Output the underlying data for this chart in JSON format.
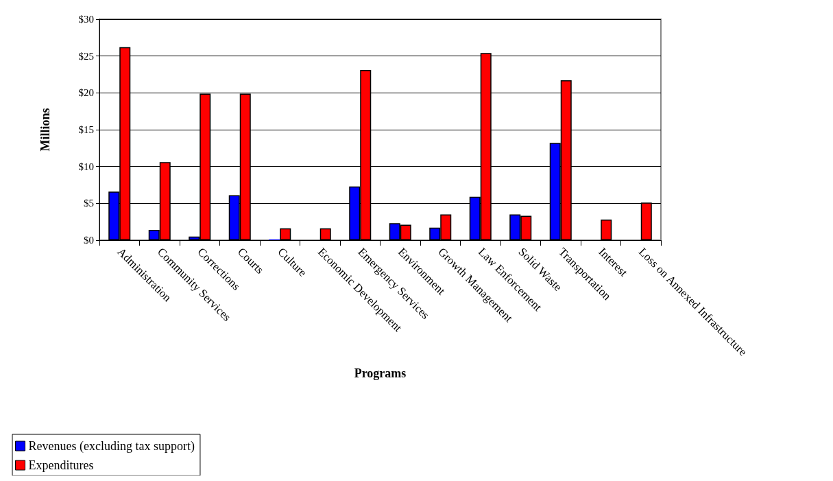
{
  "chart_data": {
    "type": "bar",
    "xlabel": "Programs",
    "ylabel": "Millions",
    "categories": [
      "Administration",
      "Community Services",
      "Corrections",
      "Courts",
      "Culture",
      "Economic Development",
      "Emergency Services",
      "Environment",
      "Growth Management",
      "Law Enforcement",
      "Solid Waste",
      "Transportation",
      "Interest",
      "Loss on Annexed Infrastructure"
    ],
    "series": [
      {
        "name": "Revenues (excluding tax support)",
        "color": "#0000ff",
        "values": [
          6.6,
          1.4,
          0.5,
          6.1,
          0.1,
          0,
          7.3,
          2.3,
          1.7,
          5.9,
          3.5,
          13.2,
          0,
          0
        ]
      },
      {
        "name": "Expenditures",
        "color": "#ff0000",
        "values": [
          26.2,
          10.6,
          19.9,
          19.9,
          1.6,
          1.6,
          23.1,
          2.1,
          3.5,
          25.4,
          3.3,
          21.7,
          2.8,
          5.1
        ]
      }
    ],
    "ylim": [
      0,
      30
    ],
    "yticks": [
      {
        "value": 0,
        "label": "$0"
      },
      {
        "value": 5,
        "label": "$5"
      },
      {
        "value": 10,
        "label": "$10"
      },
      {
        "value": 15,
        "label": "$15"
      },
      {
        "value": 20,
        "label": "$20"
      },
      {
        "value": 25,
        "label": "$25"
      },
      {
        "value": 30,
        "label": "$30"
      }
    ],
    "grid": "y",
    "legend": "bottom left"
  }
}
